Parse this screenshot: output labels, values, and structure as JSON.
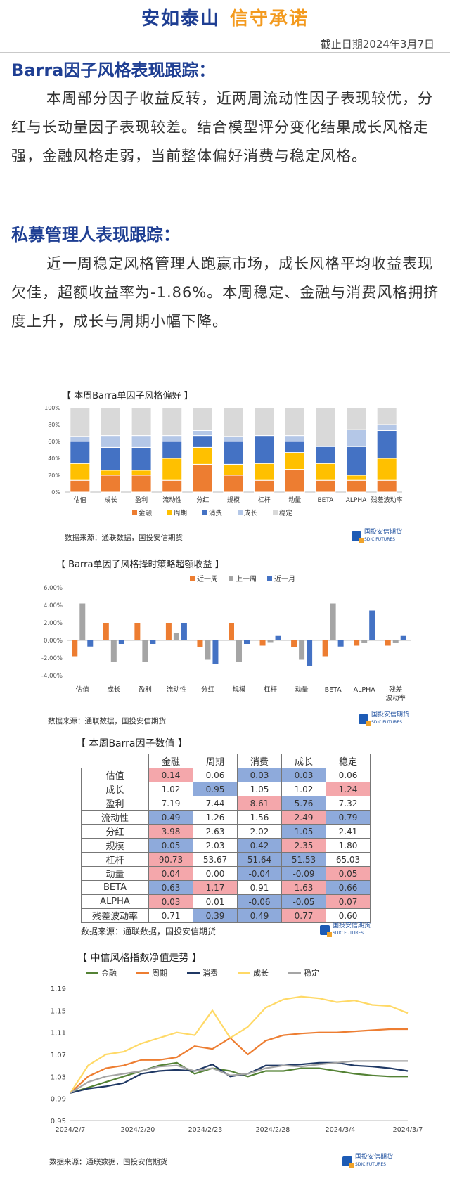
{
  "banner": {
    "left": "安如泰山",
    "right": "信守承诺"
  },
  "date": "截止日期2024年3月7日",
  "sections": [
    {
      "title": "Barra因子风格表现跟踪：",
      "body": "本周部分因子收益反转，近两周流动性因子表现较优，分红与长动量因子表现较差。结合模型评分变化结果成长风格走强，金融风格走弱，当前整体偏好消费与稳定风格。"
    },
    {
      "title": "私募管理人表现跟踪：",
      "body": "近一周稳定风格管理人跑赢市场，成长风格平均收益表现欠佳，超额收益率为-1.86%。本周稳定、金融与消费风格拥挤度上升，成长与周期小幅下降。"
    }
  ],
  "source_text": "数据来源：通联数据，国投安信期货",
  "logo_text": {
    "cn": "国投安信期货",
    "en": "SDIC FUTURES"
  },
  "colors": {
    "jr": "#ed7d31",
    "zq": "#ffc000",
    "xf": "#4472c4",
    "cz": "#b4c7e7",
    "wd": "#d9d9d9",
    "gray": "#a5a5a5",
    "pos": "#f4a7ab",
    "neg": "#8eaadb",
    "green": "#548235",
    "navy": "#1f3864"
  },
  "chart_data": [
    {
      "type": "bar",
      "stacked": true,
      "title": "【 本周Barra单因子风格偏好 】",
      "categories": [
        "估值",
        "成长",
        "盈利",
        "流动性",
        "分红",
        "规模",
        "杠杆",
        "动量",
        "BETA",
        "ALPHA",
        "残差波动率"
      ],
      "ylim": [
        0,
        100
      ],
      "yticks": [
        "0%",
        "20%",
        "40%",
        "60%",
        "80%",
        "100%"
      ],
      "series": [
        {
          "name": "金融",
          "color": "#ed7d31",
          "values": [
            14,
            20,
            20,
            14,
            33,
            20,
            14,
            27,
            14,
            14,
            14
          ]
        },
        {
          "name": "周期",
          "color": "#ffc000",
          "values": [
            20,
            6,
            6,
            26,
            20,
            13,
            20,
            20,
            20,
            6,
            26
          ]
        },
        {
          "name": "消费",
          "color": "#4472c4",
          "values": [
            26,
            27,
            27,
            20,
            14,
            27,
            33,
            13,
            20,
            34,
            33
          ]
        },
        {
          "name": "成长",
          "color": "#b4c7e7",
          "values": [
            6,
            14,
            14,
            7,
            6,
            6,
            0,
            7,
            0,
            20,
            7
          ]
        },
        {
          "name": "稳定",
          "color": "#d9d9d9",
          "values": [
            34,
            33,
            33,
            33,
            27,
            34,
            33,
            33,
            46,
            26,
            20
          ]
        }
      ],
      "legend": [
        "金融",
        "周期",
        "消费",
        "成长",
        "稳定"
      ]
    },
    {
      "type": "bar",
      "title": "【 Barra单因子风格择时策略超额收益 】",
      "categories": [
        "估值",
        "成长",
        "盈利",
        "流动性",
        "分红",
        "规模",
        "杠杆",
        "动量",
        "BETA",
        "ALPHA",
        "残差\n波动率"
      ],
      "ylim": [
        -4,
        6
      ],
      "yticks": [
        "-4.00%",
        "-2.00%",
        "0.00%",
        "2.00%",
        "4.00%",
        "6.00%"
      ],
      "series": [
        {
          "name": "近一周",
          "color": "#ed7d31",
          "values": [
            -1.8,
            2.0,
            2.0,
            2.0,
            -0.8,
            2.0,
            -0.6,
            -0.8,
            -1.8,
            -0.6,
            -0.6
          ]
        },
        {
          "name": "上一周",
          "color": "#a5a5a5",
          "values": [
            4.2,
            -2.4,
            -2.4,
            0.8,
            -2.2,
            -2.4,
            -0.2,
            -2.2,
            4.2,
            -0.3,
            -0.3
          ]
        },
        {
          "name": "近一月",
          "color": "#4472c4",
          "values": [
            -0.7,
            -0.4,
            -0.4,
            2.0,
            -2.7,
            -0.4,
            0.5,
            -2.9,
            -0.7,
            3.4,
            0.5
          ]
        }
      ],
      "legend": [
        "近一周",
        "上一周",
        "近一月"
      ]
    },
    {
      "type": "table",
      "title": "【 本周Barra因子数值 】",
      "columns": [
        "金融",
        "周期",
        "消费",
        "成长",
        "稳定"
      ],
      "rows": [
        {
          "label": "估值",
          "values": [
            "0.14",
            "0.06",
            "0.03",
            "0.03",
            "0.06"
          ],
          "tone": [
            "p",
            "w",
            "n",
            "n",
            "w"
          ]
        },
        {
          "label": "成长",
          "values": [
            "1.02",
            "0.95",
            "1.05",
            "1.02",
            "1.24"
          ],
          "tone": [
            "w",
            "n",
            "w",
            "w",
            "p"
          ]
        },
        {
          "label": "盈利",
          "values": [
            "7.19",
            "7.44",
            "8.61",
            "5.76",
            "7.32"
          ],
          "tone": [
            "w",
            "w",
            "p",
            "n",
            "w"
          ]
        },
        {
          "label": "流动性",
          "values": [
            "0.49",
            "1.26",
            "1.56",
            "2.49",
            "0.79"
          ],
          "tone": [
            "n",
            "w",
            "w",
            "p",
            "n"
          ]
        },
        {
          "label": "分红",
          "values": [
            "3.98",
            "2.63",
            "2.02",
            "1.05",
            "2.41"
          ],
          "tone": [
            "p",
            "w",
            "w",
            "n",
            "w"
          ]
        },
        {
          "label": "规模",
          "values": [
            "0.05",
            "2.03",
            "0.42",
            "2.35",
            "1.80"
          ],
          "tone": [
            "n",
            "w",
            "n",
            "p",
            "w"
          ]
        },
        {
          "label": "杠杆",
          "values": [
            "90.73",
            "53.67",
            "51.64",
            "51.53",
            "65.03"
          ],
          "tone": [
            "p",
            "w",
            "n",
            "n",
            "w"
          ]
        },
        {
          "label": "动量",
          "values": [
            "0.04",
            "0.00",
            "-0.04",
            "-0.09",
            "0.05"
          ],
          "tone": [
            "p",
            "w",
            "n",
            "n",
            "p"
          ]
        },
        {
          "label": "BETA",
          "values": [
            "0.63",
            "1.17",
            "0.91",
            "1.63",
            "0.66"
          ],
          "tone": [
            "n",
            "p",
            "w",
            "p",
            "n"
          ]
        },
        {
          "label": "ALPHA",
          "values": [
            "0.03",
            "0.01",
            "-0.06",
            "-0.05",
            "0.07"
          ],
          "tone": [
            "p",
            "w",
            "n",
            "n",
            "p"
          ]
        },
        {
          "label": "残差波动率",
          "values": [
            "0.71",
            "0.39",
            "0.49",
            "0.77",
            "0.60"
          ],
          "tone": [
            "w",
            "n",
            "n",
            "p",
            "w"
          ]
        }
      ]
    },
    {
      "type": "line",
      "title": "【 中信风格指数净值走势 】",
      "ylim": [
        0.95,
        1.19
      ],
      "yticks": [
        "0.95",
        "0.99",
        "1.03",
        "1.07",
        "1.11",
        "1.15",
        "1.19"
      ],
      "xticks": [
        "2024/2/7",
        "2024/2/20",
        "2024/2/23",
        "2024/2/28",
        "2024/3/4",
        "2024/3/7"
      ],
      "x": [
        0,
        1,
        2,
        3,
        4,
        5,
        6,
        7,
        8,
        9,
        10,
        11,
        12,
        13,
        14,
        15,
        16,
        17,
        18,
        19
      ],
      "series": [
        {
          "name": "金融",
          "color": "#548235",
          "values": [
            1.0,
            1.01,
            1.02,
            1.03,
            1.04,
            1.05,
            1.055,
            1.035,
            1.045,
            1.04,
            1.03,
            1.04,
            1.04,
            1.045,
            1.045,
            1.04,
            1.035,
            1.032,
            1.03,
            1.03
          ]
        },
        {
          "name": "周期",
          "color": "#ed7d31",
          "values": [
            1.0,
            1.03,
            1.045,
            1.05,
            1.06,
            1.06,
            1.065,
            1.085,
            1.08,
            1.1,
            1.07,
            1.095,
            1.105,
            1.108,
            1.11,
            1.11,
            1.112,
            1.114,
            1.116,
            1.116
          ]
        },
        {
          "name": "消费",
          "color": "#1f3864",
          "values": [
            1.0,
            1.008,
            1.012,
            1.018,
            1.035,
            1.04,
            1.042,
            1.04,
            1.052,
            1.03,
            1.035,
            1.05,
            1.05,
            1.052,
            1.055,
            1.055,
            1.05,
            1.048,
            1.045,
            1.04
          ]
        },
        {
          "name": "成长",
          "color": "#ffd966",
          "values": [
            1.0,
            1.05,
            1.07,
            1.075,
            1.09,
            1.1,
            1.11,
            1.105,
            1.15,
            1.1,
            1.12,
            1.155,
            1.17,
            1.175,
            1.172,
            1.165,
            1.168,
            1.16,
            1.158,
            1.145
          ]
        },
        {
          "name": "稳定",
          "color": "#a5a5a5",
          "values": [
            1.0,
            1.02,
            1.03,
            1.035,
            1.04,
            1.048,
            1.05,
            1.04,
            1.045,
            1.032,
            1.035,
            1.045,
            1.05,
            1.048,
            1.052,
            1.055,
            1.058,
            1.058,
            1.058,
            1.058
          ]
        }
      ],
      "legend": [
        "金融",
        "周期",
        "消费",
        "成长",
        "稳定"
      ]
    }
  ]
}
